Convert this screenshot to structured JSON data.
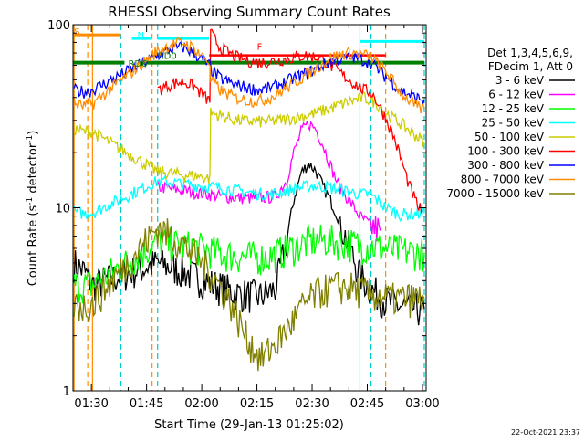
{
  "chart_data": {
    "type": "line",
    "title": "RHESSI Observing Summary Count Rates",
    "xlabel": "Start Time (29-Jan-13 01:25:02)",
    "ylabel": "Count Rate (s⁻¹ detector⁻¹)",
    "ylabel_parts": {
      "main": "Count Rate (s",
      "sup1": "-1",
      "mid": " detector",
      "sup2": "-1",
      "end": ")"
    },
    "yscale": "log",
    "ylim": [
      1,
      100
    ],
    "xlim_minutes": [
      85,
      181
    ],
    "x_ticks": [
      {
        "minute": 90,
        "label": "01:30"
      },
      {
        "minute": 105,
        "label": "01:45"
      },
      {
        "minute": 120,
        "label": "02:00"
      },
      {
        "minute": 135,
        "label": "02:15"
      },
      {
        "minute": 150,
        "label": "02:30"
      },
      {
        "minute": 165,
        "label": "02:45"
      },
      {
        "minute": 180,
        "label": "03:00"
      }
    ],
    "y_tick_labels": [
      {
        "value": 1,
        "label": "1"
      },
      {
        "value": 10,
        "label": "10"
      },
      {
        "value": 100,
        "label": "100"
      }
    ],
    "legend_header": [
      "Det 1,3,4,5,6,9,",
      "FDecim 1, Att 0"
    ],
    "legend_position": "right",
    "timestamp": "22-Oct-2021 23:37",
    "annotations": [
      {
        "text": "S",
        "minute": 85.3,
        "value": 88,
        "color": "#ff7f00"
      },
      {
        "text": "N",
        "minute": 102.5,
        "value": 84,
        "color": "#00ffff"
      },
      {
        "text": "RD0",
        "minute": 108,
        "value": 65,
        "color": "#008000"
      },
      {
        "text": "RD6",
        "minute": 100,
        "value": 59,
        "color": "#008000"
      },
      {
        "text": "F",
        "minute": 135,
        "value": 73,
        "color": "#ff0000"
      }
    ],
    "series": [
      {
        "name": "3 - 6 keV",
        "color": "#000000",
        "points": [
          [
            85.3,
            5
          ],
          [
            88,
            4.5
          ],
          [
            90.3,
            3.8
          ],
          [
            108,
            5
          ],
          [
            115,
            4.5
          ],
          [
            122,
            3.9
          ],
          [
            130,
            3.4
          ],
          [
            136,
            3.3
          ],
          [
            140,
            3.6
          ],
          [
            143,
            6.5
          ],
          [
            145,
            11
          ],
          [
            147,
            15.5
          ],
          [
            149,
            17.5
          ],
          [
            151,
            16
          ],
          [
            153,
            13
          ],
          [
            155,
            11
          ],
          [
            157,
            9
          ],
          [
            159,
            7
          ],
          [
            161,
            5.5
          ],
          [
            163,
            4.3
          ],
          [
            166,
            3.6
          ],
          [
            170,
            3.1
          ],
          [
            174,
            2.9
          ],
          [
            178,
            2.8
          ],
          [
            180.5,
            2.8
          ]
        ]
      },
      {
        "name": "6 - 12 keV",
        "color": "#ff00ff",
        "points": [
          [
            108,
            13
          ],
          [
            114,
            12.5
          ],
          [
            120,
            12
          ],
          [
            126,
            11.5
          ],
          [
            130,
            11.3
          ],
          [
            135,
            11.3
          ],
          [
            140,
            11.5
          ],
          [
            143,
            14
          ],
          [
            145,
            20
          ],
          [
            147,
            26
          ],
          [
            149,
            29
          ],
          [
            151,
            27
          ],
          [
            153,
            22
          ],
          [
            155,
            17
          ],
          [
            157,
            13.5
          ],
          [
            160,
            11
          ],
          [
            163,
            9
          ],
          [
            166,
            8
          ],
          [
            168.5,
            7.5
          ]
        ]
      },
      {
        "name": "12 - 25 keV",
        "color": "#00ff00",
        "points": [
          [
            85.3,
            3.8
          ],
          [
            88,
            3.8
          ],
          [
            90.3,
            3.8
          ],
          [
            108,
            6.5
          ],
          [
            114,
            6.3
          ],
          [
            120,
            6
          ],
          [
            126,
            5.6
          ],
          [
            132,
            5.4
          ],
          [
            138,
            5.4
          ],
          [
            142,
            5.8
          ],
          [
            146,
            6.2
          ],
          [
            150,
            6.6
          ],
          [
            154,
            6.7
          ],
          [
            158,
            6.5
          ],
          [
            162,
            6.3
          ],
          [
            166,
            6.2
          ],
          [
            170,
            6
          ],
          [
            175,
            5.8
          ],
          [
            180.5,
            5.7
          ]
        ]
      },
      {
        "name": "25 - 50 keV",
        "color": "#00ffff",
        "points": [
          [
            85.3,
            9.5
          ],
          [
            88,
            9.3
          ],
          [
            90.3,
            9.4
          ],
          [
            108,
            14
          ],
          [
            114,
            13.6
          ],
          [
            120,
            13.2
          ],
          [
            126,
            12.8
          ],
          [
            132,
            12.2
          ],
          [
            138,
            11.8
          ],
          [
            142,
            12.3
          ],
          [
            146,
            12.8
          ],
          [
            150,
            13.2
          ],
          [
            154,
            13
          ],
          [
            158,
            12.5
          ],
          [
            162,
            12
          ],
          [
            166,
            11.8
          ],
          [
            170,
            10
          ],
          [
            174,
            9.2
          ],
          [
            178,
            9.3
          ],
          [
            180.5,
            9.3
          ]
        ]
      },
      {
        "name": "50 - 100 keV",
        "color": "#cccc00",
        "points": [
          [
            85.3,
            27
          ],
          [
            88,
            26
          ],
          [
            90.3,
            26
          ],
          [
            108,
            15.8
          ],
          [
            114,
            15.2
          ],
          [
            120,
            14.8
          ],
          [
            122.2,
            14.5
          ],
          [
            122.4,
            33
          ],
          [
            126,
            31.5
          ],
          [
            130,
            30
          ],
          [
            135,
            29.5
          ],
          [
            140,
            29.8
          ],
          [
            145,
            31
          ],
          [
            150,
            32.5
          ],
          [
            155,
            35
          ],
          [
            160,
            38
          ],
          [
            164,
            40
          ],
          [
            167,
            38
          ],
          [
            170,
            33
          ],
          [
            174,
            29
          ],
          [
            178,
            25
          ],
          [
            180.5,
            23
          ]
        ]
      },
      {
        "name": "100 - 300 keV",
        "color": "#ff0000",
        "points": [
          [
            108,
            44
          ],
          [
            112,
            47.5
          ],
          [
            115,
            49
          ],
          [
            118,
            46
          ],
          [
            121,
            40
          ],
          [
            122.2,
            38
          ],
          [
            122.4,
            90
          ],
          [
            125,
            75
          ],
          [
            129,
            67
          ],
          [
            133,
            63
          ],
          [
            136,
            62
          ],
          [
            140,
            63.5
          ],
          [
            145,
            66
          ],
          [
            148,
            68
          ],
          [
            152,
            66
          ],
          [
            156,
            58
          ],
          [
            160,
            50
          ],
          [
            164,
            44
          ],
          [
            166,
            43
          ],
          [
            168,
            37
          ],
          [
            170,
            31
          ],
          [
            172,
            25
          ],
          [
            174,
            19
          ],
          [
            176,
            14
          ],
          [
            178,
            11
          ],
          [
            179,
            10
          ],
          [
            180,
            9.6
          ]
        ]
      },
      {
        "name": "300 - 800 keV",
        "color": "#0000ff",
        "points": [
          [
            85.3,
            44
          ],
          [
            88,
            43
          ],
          [
            90.3,
            44
          ],
          [
            108,
            68
          ],
          [
            112,
            74
          ],
          [
            115,
            75.5
          ],
          [
            118,
            70
          ],
          [
            121,
            62
          ],
          [
            122.2,
            60
          ],
          [
            122.4,
            57
          ],
          [
            125,
            51
          ],
          [
            129,
            47
          ],
          [
            133,
            45
          ],
          [
            136,
            44
          ],
          [
            140,
            46
          ],
          [
            145,
            51
          ],
          [
            150,
            56
          ],
          [
            155,
            63
          ],
          [
            159,
            66
          ],
          [
            162,
            66
          ],
          [
            166,
            62
          ],
          [
            170,
            52
          ],
          [
            174,
            44
          ],
          [
            178,
            40
          ],
          [
            180.5,
            39
          ]
        ]
      },
      {
        "name": "800 - 7000 keV",
        "color": "#ff8c00",
        "points": [
          [
            85.3,
            37
          ],
          [
            88,
            36
          ],
          [
            90.3,
            37
          ],
          [
            108,
            72
          ],
          [
            112,
            78
          ],
          [
            115,
            80
          ],
          [
            118,
            74
          ],
          [
            121,
            65
          ],
          [
            122.2,
            62
          ],
          [
            122.4,
            50
          ],
          [
            125,
            44
          ],
          [
            129,
            40
          ],
          [
            133,
            38.5
          ],
          [
            136,
            38.5
          ],
          [
            140,
            41
          ],
          [
            145,
            48
          ],
          [
            150,
            56
          ],
          [
            155,
            66
          ],
          [
            159,
            70
          ],
          [
            162,
            70
          ],
          [
            166,
            67
          ],
          [
            170,
            56
          ],
          [
            174,
            43
          ],
          [
            178,
            36
          ],
          [
            180.5,
            34
          ]
        ]
      },
      {
        "name": "7000 - 15000 keV",
        "color": "#808000",
        "points": [
          [
            85.3,
            3
          ],
          [
            88,
            2.9
          ],
          [
            90.3,
            3
          ],
          [
            108,
            7.8
          ],
          [
            114,
            6.6
          ],
          [
            120,
            5.1
          ],
          [
            124,
            4
          ],
          [
            128,
            3
          ],
          [
            132,
            2
          ],
          [
            136,
            1.5
          ],
          [
            140,
            1.8
          ],
          [
            144,
            2.3
          ],
          [
            148,
            3
          ],
          [
            152,
            3.5
          ],
          [
            156,
            3.7
          ],
          [
            160,
            3.7
          ],
          [
            164,
            3.5
          ],
          [
            168,
            3.3
          ],
          [
            172,
            3.2
          ],
          [
            176,
            3.2
          ],
          [
            180.5,
            3.2
          ]
        ]
      }
    ]
  }
}
